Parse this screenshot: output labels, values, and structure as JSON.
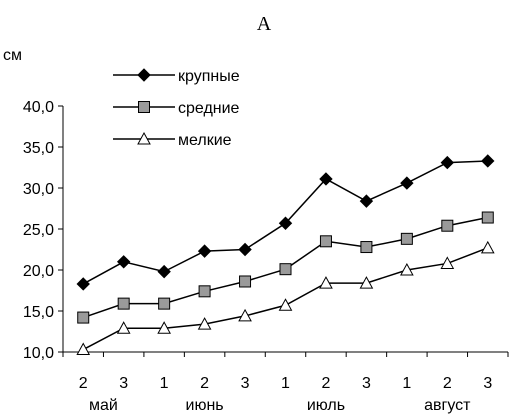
{
  "chart_data": {
    "type": "line",
    "title": "А",
    "ylabel": "см",
    "ylim": [
      10,
      40
    ],
    "yticks": [
      "10,0",
      "15,0",
      "20,0",
      "25,0",
      "30,0",
      "35,0",
      "40,0"
    ],
    "categories": [
      "2",
      "3",
      "1",
      "2",
      "3",
      "1",
      "2",
      "3",
      "1",
      "2",
      "3"
    ],
    "months": [
      "май",
      "июнь",
      "июль",
      "август"
    ],
    "legend_position": "top-left",
    "grid": false,
    "series": [
      {
        "name": "крупные",
        "marker": "diamond",
        "values": [
          18.3,
          21.0,
          19.8,
          22.3,
          22.5,
          25.7,
          31.1,
          28.4,
          30.6,
          33.1,
          33.3
        ]
      },
      {
        "name": "средние",
        "marker": "square",
        "values": [
          14.2,
          15.9,
          15.9,
          17.4,
          18.6,
          20.1,
          23.5,
          22.8,
          23.8,
          25.4,
          26.4
        ]
      },
      {
        "name": "мелкие",
        "marker": "triangle",
        "values": [
          10.3,
          12.9,
          12.9,
          13.4,
          14.4,
          15.7,
          18.4,
          18.4,
          20.0,
          20.8,
          22.7
        ]
      }
    ]
  }
}
